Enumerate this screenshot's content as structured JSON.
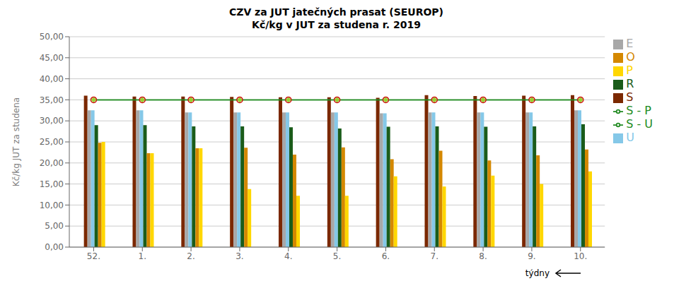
{
  "chart_data": {
    "type": "bar",
    "title": "CZV za JUT jatečných prasat (SEUROP)",
    "subtitle": "Kč/kg v JUT za studena r. 2019",
    "x_label": "týdny",
    "y_label": "Kč/kg JUT za studena",
    "categories": [
      "52.",
      "1.",
      "2.",
      "3.",
      "4.",
      "5.",
      "6.",
      "7.",
      "8.",
      "9.",
      "10."
    ],
    "series": [
      {
        "name": "S",
        "type": "bar",
        "color": "#7B2800",
        "values": [
          36.0,
          35.8,
          35.8,
          35.7,
          35.6,
          35.6,
          35.5,
          36.1,
          35.9,
          36.0,
          36.1
        ]
      },
      {
        "name": "E",
        "type": "bar",
        "color": "#A8A8A8",
        "values": [
          32.5,
          32.5,
          32.0,
          32.0,
          32.0,
          32.0,
          31.8,
          32.0,
          32.0,
          32.0,
          32.5
        ]
      },
      {
        "name": "U",
        "type": "bar",
        "color": "#85C8E8",
        "values": [
          32.5,
          32.5,
          32.0,
          32.0,
          32.0,
          32.0,
          31.8,
          32.0,
          32.0,
          32.0,
          32.5
        ]
      },
      {
        "name": "R",
        "type": "bar",
        "color": "#1A5C1A",
        "values": [
          29.0,
          29.0,
          28.7,
          28.7,
          28.5,
          28.2,
          28.6,
          28.7,
          28.6,
          28.7,
          29.2
        ]
      },
      {
        "name": "O",
        "type": "bar",
        "color": "#D48800",
        "values": [
          24.8,
          22.3,
          23.5,
          23.6,
          22.0,
          23.7,
          20.9,
          22.9,
          20.6,
          21.8,
          23.2
        ]
      },
      {
        "name": "P",
        "type": "bar",
        "color": "#FFD700",
        "values": [
          25.0,
          22.3,
          23.5,
          13.8,
          12.2,
          12.2,
          16.8,
          14.4,
          17.0,
          15.0,
          18.0
        ]
      },
      {
        "name": "S - P",
        "type": "line",
        "color": "#228B22",
        "marker": "circle",
        "values": [
          35.0,
          35.0,
          35.0,
          35.0,
          35.0,
          35.0,
          35.0,
          35.0,
          35.0,
          35.0,
          35.0
        ]
      },
      {
        "name": "S - U",
        "type": "line",
        "color": "#228B22",
        "marker": "diamond",
        "values": [
          35.0,
          35.0,
          35.0,
          35.0,
          35.0,
          35.0,
          35.0,
          35.0,
          35.0,
          35.0,
          35.0
        ]
      }
    ],
    "ylim": [
      0,
      50
    ],
    "yticks": [
      {
        "value": 0,
        "label": "0,00"
      },
      {
        "value": 5,
        "label": "5,00"
      },
      {
        "value": 10,
        "label": "10,00"
      },
      {
        "value": 15,
        "label": "15,00"
      },
      {
        "value": 20,
        "label": "20,00"
      },
      {
        "value": 25,
        "label": "25,00"
      },
      {
        "value": 30,
        "label": "30,00"
      },
      {
        "value": 35,
        "label": "35,00"
      },
      {
        "value": 40,
        "label": "40,00"
      },
      {
        "value": 45,
        "label": "45,00"
      },
      {
        "value": 50,
        "label": "50,00"
      }
    ],
    "grid": "y",
    "legend": "right"
  }
}
